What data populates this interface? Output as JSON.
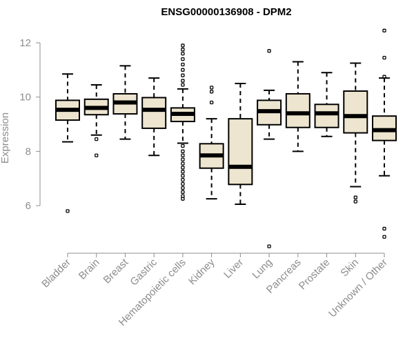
{
  "chart_data": {
    "type": "box",
    "title": "ENSG00000136908 - DPM2",
    "ylabel": "Expression",
    "xlabel": "",
    "ylim": [
      4.3,
      12.6
    ],
    "yticks": [
      6,
      8,
      10,
      12
    ],
    "box_color": "#ede5cf",
    "categories": [
      "Bladder",
      "Brain",
      "Breast",
      "Gastric",
      "Hematopoietic cells",
      "Kidney",
      "Liver",
      "Lung",
      "Pancreas",
      "Prostate",
      "Skin",
      "Unknown / Other"
    ],
    "series": [
      {
        "min": 8.35,
        "q1": 9.15,
        "median": 9.53,
        "q3": 9.88,
        "max": 10.85,
        "outliers": [
          5.8
        ]
      },
      {
        "min": 8.6,
        "q1": 9.35,
        "median": 9.6,
        "q3": 9.92,
        "max": 10.45,
        "outliers": [
          8.45,
          7.85
        ]
      },
      {
        "min": 8.45,
        "q1": 9.38,
        "median": 9.8,
        "q3": 10.12,
        "max": 11.15,
        "outliers": []
      },
      {
        "min": 7.85,
        "q1": 8.85,
        "median": 9.53,
        "q3": 9.98,
        "max": 10.7,
        "outliers": []
      },
      {
        "min": 8.3,
        "q1": 9.1,
        "median": 9.38,
        "q3": 9.6,
        "max": 10.3,
        "outliers": [
          11.9,
          11.75,
          11.6,
          11.4,
          11.2,
          11.0,
          10.8,
          10.6,
          10.45,
          8.2,
          8.0,
          7.85,
          7.7,
          7.55,
          7.4,
          7.25,
          7.1,
          6.95,
          6.8,
          6.65,
          6.5,
          6.35,
          6.25
        ]
      },
      {
        "min": 6.25,
        "q1": 7.38,
        "median": 7.85,
        "q3": 8.28,
        "max": 9.2,
        "outliers": [
          10.35,
          10.2,
          9.8
        ]
      },
      {
        "min": 6.05,
        "q1": 6.78,
        "median": 7.43,
        "q3": 9.2,
        "max": 10.5,
        "outliers": []
      },
      {
        "min": 8.45,
        "q1": 8.98,
        "median": 9.48,
        "q3": 9.88,
        "max": 10.25,
        "outliers": [
          11.7,
          4.5
        ]
      },
      {
        "min": 8.0,
        "q1": 8.88,
        "median": 9.4,
        "q3": 10.12,
        "max": 11.3,
        "outliers": []
      },
      {
        "min": 8.55,
        "q1": 8.88,
        "median": 9.4,
        "q3": 9.73,
        "max": 10.9,
        "outliers": []
      },
      {
        "min": 6.7,
        "q1": 8.68,
        "median": 9.3,
        "q3": 10.22,
        "max": 11.25,
        "outliers": [
          6.3,
          6.15
        ]
      },
      {
        "min": 7.1,
        "q1": 8.4,
        "median": 8.78,
        "q3": 9.3,
        "max": 10.7,
        "outliers": [
          12.45,
          11.45,
          10.75,
          5.15,
          4.85
        ]
      }
    ]
  }
}
